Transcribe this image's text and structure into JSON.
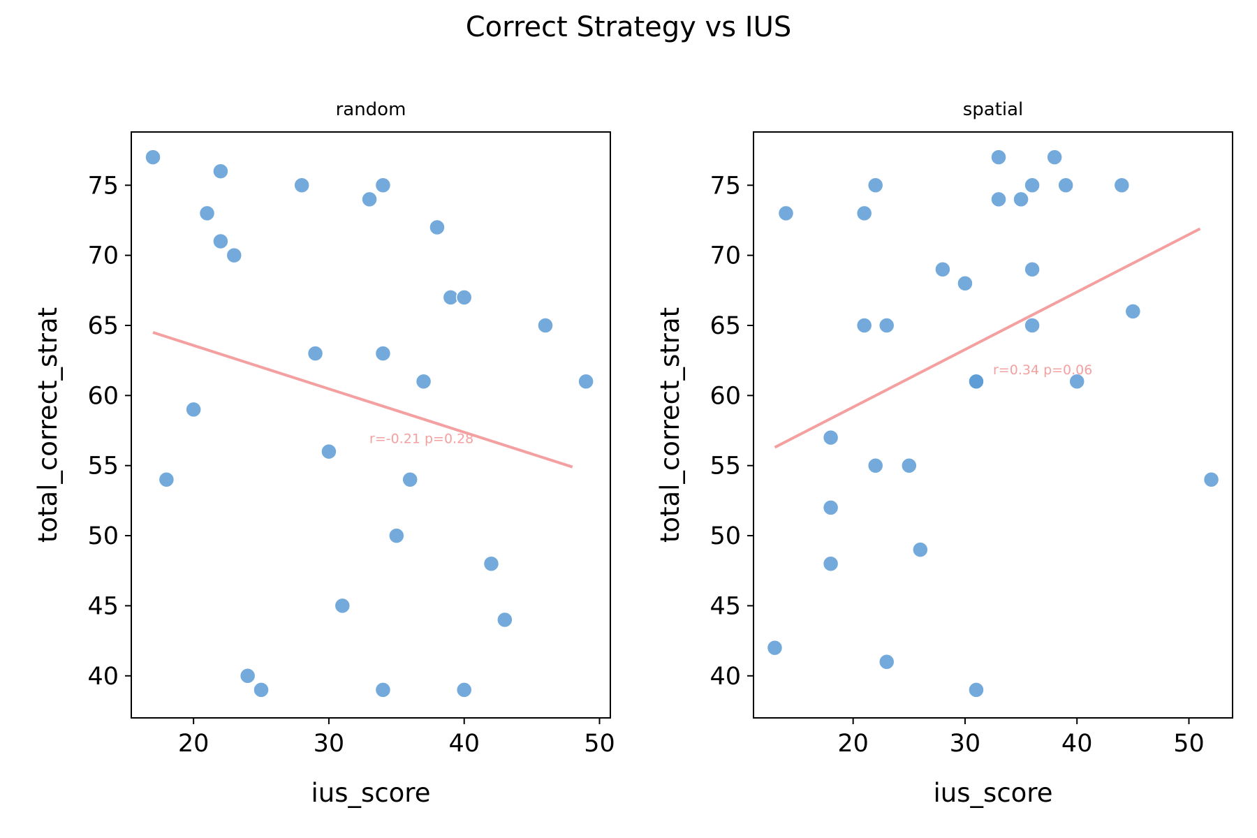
{
  "figure": {
    "title": "Correct Strategy vs IUS"
  },
  "chart_data": [
    {
      "type": "scatter",
      "title": "random",
      "xlabel": "ius_score",
      "ylabel": "total_correct_strat",
      "xlim": [
        15.4,
        50.8
      ],
      "ylim": [
        37.0,
        78.8
      ],
      "xticks": [
        20,
        30,
        40,
        50
      ],
      "yticks": [
        40,
        45,
        50,
        55,
        60,
        65,
        70,
        75
      ],
      "grid": false,
      "point_color": "#5b9bd5",
      "points": [
        {
          "x": 17,
          "y": 77
        },
        {
          "x": 22,
          "y": 76
        },
        {
          "x": 28,
          "y": 75
        },
        {
          "x": 34,
          "y": 75
        },
        {
          "x": 33,
          "y": 74
        },
        {
          "x": 21,
          "y": 73
        },
        {
          "x": 38,
          "y": 72
        },
        {
          "x": 22,
          "y": 71
        },
        {
          "x": 23,
          "y": 70
        },
        {
          "x": 39,
          "y": 67
        },
        {
          "x": 40,
          "y": 67
        },
        {
          "x": 46,
          "y": 65
        },
        {
          "x": 29,
          "y": 63
        },
        {
          "x": 34,
          "y": 63
        },
        {
          "x": 37,
          "y": 61
        },
        {
          "x": 49,
          "y": 61
        },
        {
          "x": 20,
          "y": 59
        },
        {
          "x": 30,
          "y": 56
        },
        {
          "x": 18,
          "y": 54
        },
        {
          "x": 36,
          "y": 54
        },
        {
          "x": 35,
          "y": 50
        },
        {
          "x": 42,
          "y": 48
        },
        {
          "x": 31,
          "y": 45
        },
        {
          "x": 43,
          "y": 44
        },
        {
          "x": 24,
          "y": 40
        },
        {
          "x": 25,
          "y": 39
        },
        {
          "x": 34,
          "y": 39
        },
        {
          "x": 40,
          "y": 39
        }
      ],
      "fit_line": {
        "x": [
          17,
          48
        ],
        "y": [
          64.5,
          54.9
        ],
        "color": "#f4a0a0"
      },
      "annotation": {
        "text": "r=-0.21 p=0.28",
        "x": 33,
        "y": 56.6
      }
    },
    {
      "type": "scatter",
      "title": "spatial",
      "xlabel": "ius_score",
      "ylabel": "total_correct_strat",
      "xlim": [
        11.1,
        53.9
      ],
      "ylim": [
        37.0,
        78.8
      ],
      "xticks": [
        20,
        30,
        40,
        50
      ],
      "yticks": [
        40,
        45,
        50,
        55,
        60,
        65,
        70,
        75
      ],
      "grid": false,
      "point_color": "#5b9bd5",
      "points": [
        {
          "x": 33,
          "y": 77
        },
        {
          "x": 38,
          "y": 77
        },
        {
          "x": 22,
          "y": 75
        },
        {
          "x": 36,
          "y": 75
        },
        {
          "x": 39,
          "y": 75
        },
        {
          "x": 44,
          "y": 75
        },
        {
          "x": 33,
          "y": 74
        },
        {
          "x": 35,
          "y": 74
        },
        {
          "x": 14,
          "y": 73
        },
        {
          "x": 21,
          "y": 73
        },
        {
          "x": 28,
          "y": 69
        },
        {
          "x": 36,
          "y": 69
        },
        {
          "x": 30,
          "y": 68
        },
        {
          "x": 45,
          "y": 66
        },
        {
          "x": 21,
          "y": 65
        },
        {
          "x": 23,
          "y": 65
        },
        {
          "x": 36,
          "y": 65
        },
        {
          "x": 31,
          "y": 61
        },
        {
          "x": 31,
          "y": 61
        },
        {
          "x": 40,
          "y": 61
        },
        {
          "x": 18,
          "y": 57
        },
        {
          "x": 22,
          "y": 55
        },
        {
          "x": 25,
          "y": 55
        },
        {
          "x": 52,
          "y": 54
        },
        {
          "x": 18,
          "y": 52
        },
        {
          "x": 26,
          "y": 49
        },
        {
          "x": 18,
          "y": 48
        },
        {
          "x": 13,
          "y": 42
        },
        {
          "x": 23,
          "y": 41
        },
        {
          "x": 31,
          "y": 39
        }
      ],
      "fit_line": {
        "x": [
          13,
          51
        ],
        "y": [
          56.3,
          71.9
        ],
        "color": "#f4a0a0"
      },
      "annotation": {
        "text": "r=0.34 p=0.06",
        "x": 32.5,
        "y": 61.5
      }
    }
  ]
}
